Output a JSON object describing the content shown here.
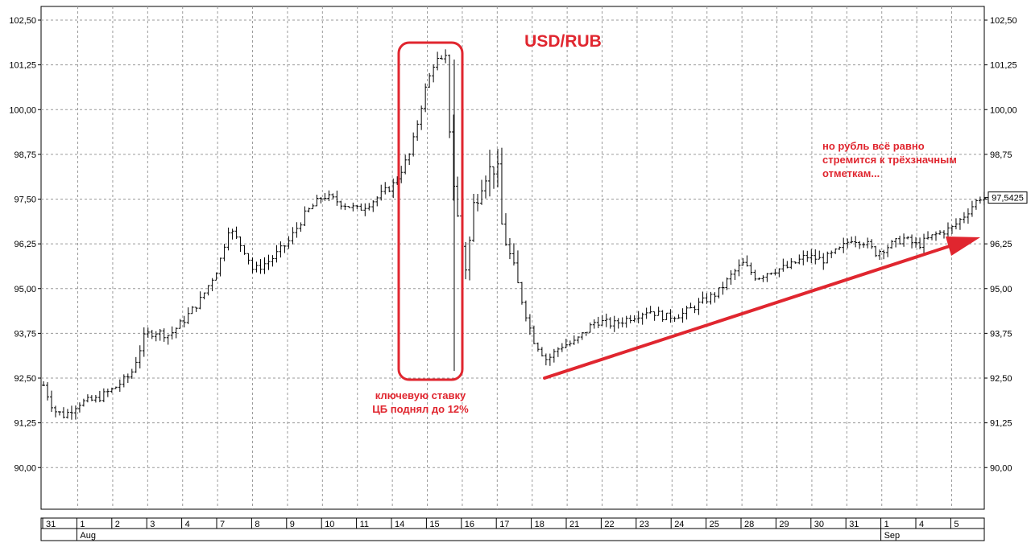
{
  "chart_data": {
    "type": "ohlc",
    "title": "USD/RUB",
    "ylim": [
      89.0,
      103.0
    ],
    "y_ticks": [
      "102,50",
      "101,25",
      "100,00",
      "98,75",
      "97,50",
      "96,25",
      "95,00",
      "93,75",
      "92,50",
      "91,25",
      "90,00"
    ],
    "y_tick_values": [
      102.5,
      101.25,
      100.0,
      98.75,
      97.5,
      96.25,
      95.0,
      93.75,
      92.5,
      91.25,
      90.0
    ],
    "grid": true,
    "last_price_label": "97,5425",
    "last_price": 97.5425,
    "x_day_labels": [
      "31",
      "1",
      "2",
      "3",
      "4",
      "7",
      "8",
      "9",
      "10",
      "11",
      "14",
      "15",
      "16",
      "17",
      "18",
      "21",
      "22",
      "23",
      "24",
      "25",
      "28",
      "29",
      "30",
      "31",
      "1",
      "4",
      "5"
    ],
    "x_month_labels": [
      {
        "label": "Aug",
        "day_index": 1
      },
      {
        "label": "Sep",
        "day_index": 24
      }
    ],
    "series": [
      {
        "key_points": [
          [
            0.0,
            92.3
          ],
          [
            0.3,
            91.6
          ],
          [
            0.6,
            91.45
          ],
          [
            1.0,
            91.8
          ],
          [
            1.5,
            91.9
          ],
          [
            2.0,
            92.2
          ],
          [
            2.5,
            92.6
          ],
          [
            2.9,
            93.7
          ],
          [
            3.2,
            93.8
          ],
          [
            3.6,
            93.7
          ],
          [
            4.0,
            94.1
          ],
          [
            4.5,
            94.7
          ],
          [
            5.0,
            95.6
          ],
          [
            5.3,
            96.7
          ],
          [
            5.8,
            96.0
          ],
          [
            6.0,
            95.5
          ],
          [
            6.5,
            95.8
          ],
          [
            7.0,
            96.3
          ],
          [
            7.5,
            97.1
          ],
          [
            8.0,
            97.6
          ],
          [
            8.5,
            97.4
          ],
          [
            9.0,
            97.2
          ],
          [
            9.5,
            97.5
          ],
          [
            10.0,
            97.9
          ],
          [
            10.5,
            98.8
          ],
          [
            10.9,
            100.5
          ],
          [
            11.2,
            101.4
          ],
          [
            11.5,
            101.3
          ],
          [
            11.7,
            98.2
          ],
          [
            11.9,
            96.5
          ],
          [
            12.1,
            95.5
          ],
          [
            12.3,
            97.3
          ],
          [
            12.6,
            98.2
          ],
          [
            12.9,
            98.4
          ],
          [
            13.0,
            98.2
          ],
          [
            13.1,
            96.8
          ],
          [
            13.5,
            95.3
          ],
          [
            14.0,
            93.6
          ],
          [
            14.4,
            93.0
          ],
          [
            14.8,
            93.4
          ],
          [
            15.2,
            93.5
          ],
          [
            15.5,
            93.8
          ],
          [
            15.8,
            94.1
          ],
          [
            16.3,
            94.0
          ],
          [
            16.8,
            94.2
          ],
          [
            17.3,
            94.4
          ],
          [
            17.8,
            94.2
          ],
          [
            18.3,
            94.3
          ],
          [
            18.8,
            94.6
          ],
          [
            19.3,
            94.9
          ],
          [
            19.7,
            95.4
          ],
          [
            20.0,
            95.7
          ],
          [
            20.4,
            95.3
          ],
          [
            20.8,
            95.5
          ],
          [
            21.3,
            95.6
          ],
          [
            21.8,
            95.9
          ],
          [
            22.3,
            95.8
          ],
          [
            22.8,
            96.1
          ],
          [
            23.1,
            96.4
          ],
          [
            23.5,
            96.3
          ],
          [
            23.8,
            96.0
          ],
          [
            24.2,
            96.2
          ],
          [
            24.6,
            96.4
          ],
          [
            25.0,
            96.2
          ],
          [
            25.5,
            96.5
          ],
          [
            26.0,
            96.7
          ],
          [
            26.3,
            97.0
          ],
          [
            26.6,
            97.35
          ],
          [
            26.8,
            97.55
          ],
          [
            27.0,
            97.5
          ]
        ],
        "ohlc_spike": {
          "day_position": 11.75,
          "low": 92.7,
          "high": 101.4
        }
      }
    ],
    "annotations": [
      {
        "lines": [
          "ключевую ставку",
          "ЦБ поднял до 12%"
        ]
      },
      {
        "lines": [
          "но рубль всё равно",
          "стремится к трёхзначным",
          "отметкам..."
        ]
      }
    ]
  },
  "colors": {
    "accent": "#e0262f",
    "bars": "#000000",
    "grid": "#9a9a9a",
    "frame": "#000000"
  }
}
